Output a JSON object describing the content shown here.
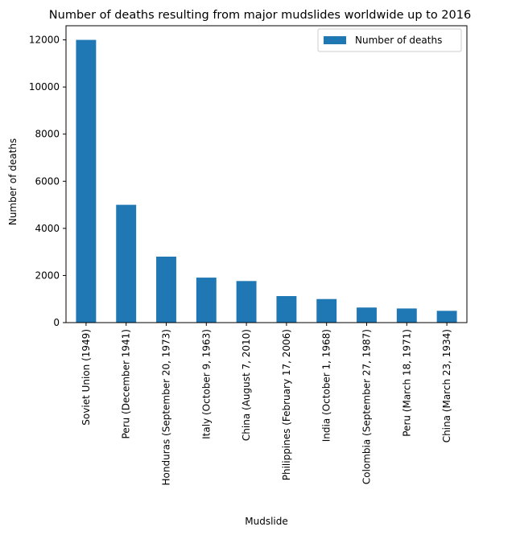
{
  "chart_data": {
    "type": "bar",
    "title": "Number of deaths resulting from major mudslides worldwide up to 2016",
    "xlabel": "Mudslide",
    "ylabel": "Number of deaths",
    "categories": [
      "Soviet Union (1949)",
      "Peru (December 1941)",
      "Honduras (September 20, 1973)",
      "Italy (October 9, 1963)",
      "China (August 7, 2010)",
      "Philippines (February 17, 2006)",
      "India (October 1, 1968)",
      "Colombia (September 27, 1987)",
      "Peru (March 18, 1971)",
      "China (March 23, 1934)"
    ],
    "series": [
      {
        "name": "Number of deaths",
        "values": [
          12000,
          5000,
          2800,
          1910,
          1765,
          1126,
          1000,
          640,
          600,
          500
        ],
        "color": "#1f77b4"
      }
    ],
    "ylim": [
      0,
      12600
    ],
    "yticks": [
      0,
      2000,
      4000,
      6000,
      8000,
      10000,
      12000
    ],
    "grid": false,
    "legend_position": "top-right"
  }
}
